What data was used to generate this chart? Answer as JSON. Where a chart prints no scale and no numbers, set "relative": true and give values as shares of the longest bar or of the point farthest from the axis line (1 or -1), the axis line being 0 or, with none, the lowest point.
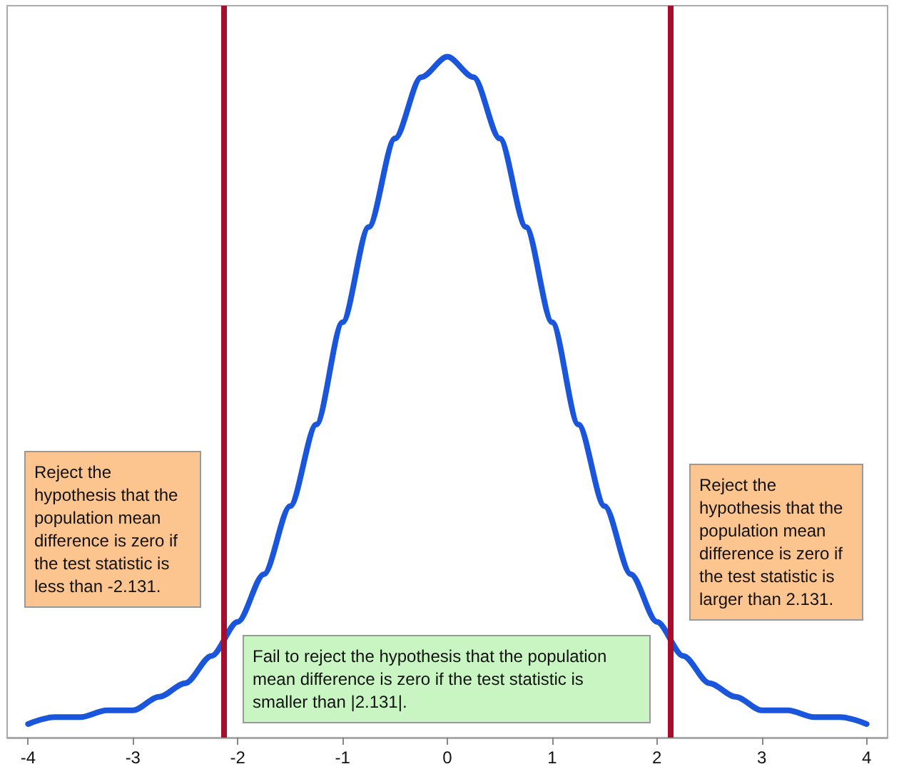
{
  "chart_data": {
    "type": "line",
    "relative": true,
    "xlim": [
      -4.2,
      4.2
    ],
    "xticks": [
      -4,
      -3,
      -2,
      -1,
      0,
      1,
      2,
      3,
      4
    ],
    "grid": false,
    "marker": "none",
    "line_style": "solid",
    "x": [
      -4,
      -3.75,
      -3.5,
      -3.25,
      -3,
      -2.75,
      -2.5,
      -2.25,
      -2,
      -1.75,
      -1.5,
      -1.25,
      -1,
      -0.75,
      -0.5,
      -0.25,
      0,
      0.25,
      0.5,
      0.75,
      1,
      1.25,
      1.5,
      1.75,
      2,
      2.25,
      2.5,
      2.75,
      3,
      3.25,
      3.5,
      3.75,
      4
    ],
    "series": [
      {
        "color": "#1a56db",
        "values": [
          0.02,
          0.03,
          0.03,
          0.04,
          0.04,
          0.06,
          0.08,
          0.12,
          0.17,
          0.24,
          0.34,
          0.46,
          0.61,
          0.75,
          0.88,
          0.97,
          1,
          0.97,
          0.88,
          0.75,
          0.61,
          0.46,
          0.34,
          0.24,
          0.17,
          0.12,
          0.08,
          0.06,
          0.04,
          0.04,
          0.03,
          0.03,
          0.02
        ]
      }
    ],
    "ref_lines": [
      {
        "axis": "x",
        "value": -2.131,
        "color": "#a50e2d"
      },
      {
        "axis": "x",
        "value": 2.131,
        "color": "#a50e2d"
      }
    ],
    "annotations": [
      "Reject the hypothesis that the population mean difference is zero if the test statistic is less than -2.131.",
      "Reject the hypothesis that the population mean difference is zero if the test statistic is larger than 2.131.",
      "Fail to reject the hypothesis that the population mean difference is zero if the test statistic is smaller than |2.131|."
    ]
  }
}
